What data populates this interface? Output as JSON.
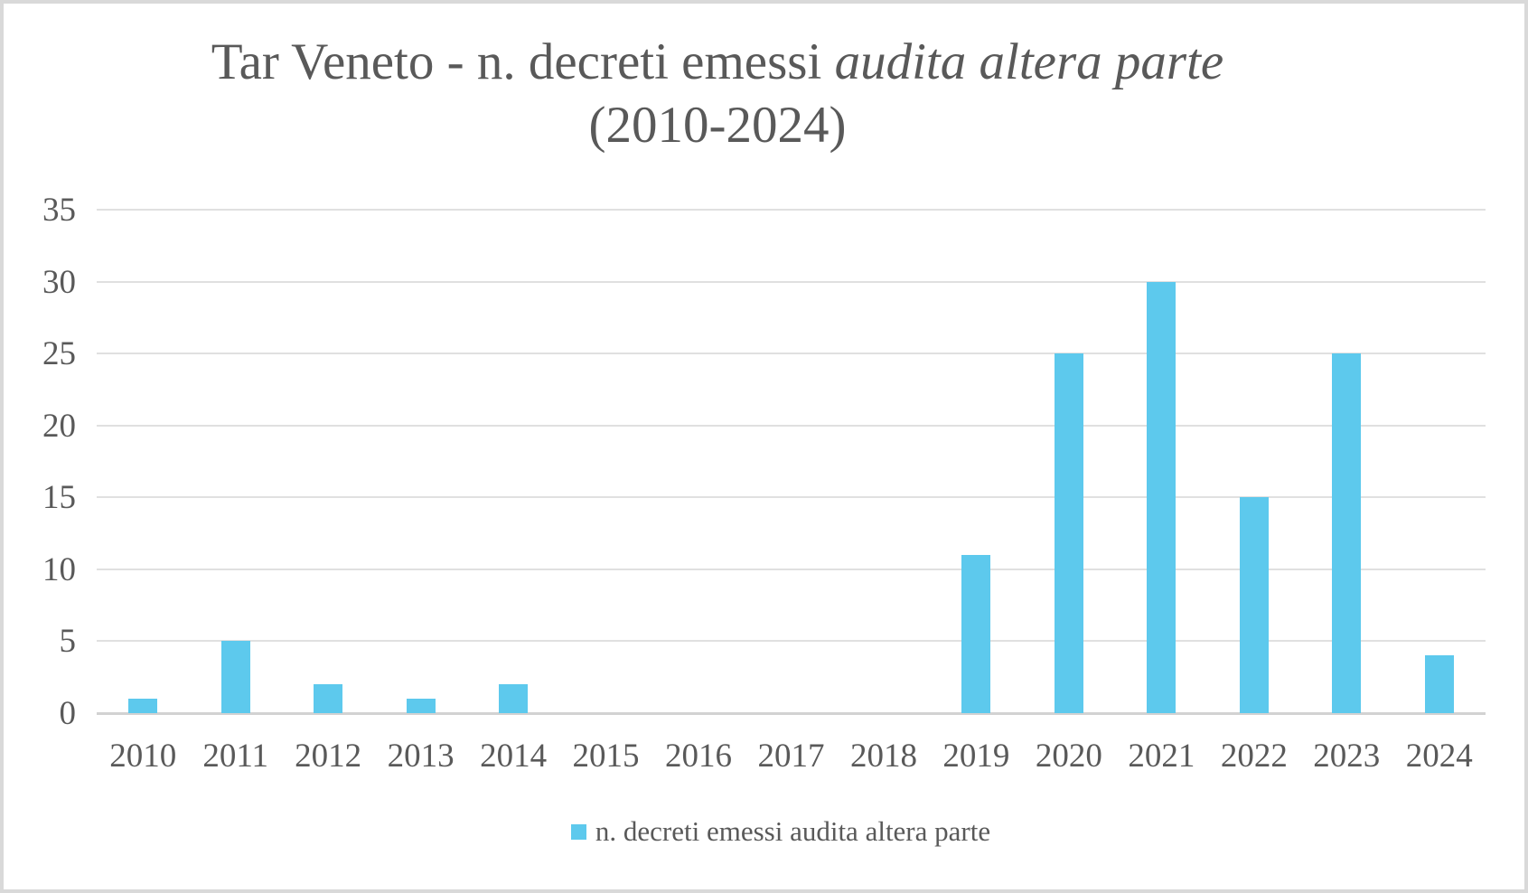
{
  "chart_data": {
    "type": "bar",
    "title": "Tar Veneto - n. decreti emessi audita altera parte (2010-2024)",
    "title_main": "Tar Veneto - n. decreti emessi ",
    "title_italic": "audita altera parte",
    "title_line2": "(2010-2024)",
    "categories": [
      "2010",
      "2011",
      "2012",
      "2013",
      "2014",
      "2015",
      "2016",
      "2017",
      "2018",
      "2019",
      "2020",
      "2021",
      "2022",
      "2023",
      "2024"
    ],
    "series": [
      {
        "name": "n. decreti emessi audita altera parte",
        "values": [
          1,
          5,
          2,
          1,
          2,
          0,
          0,
          0,
          0,
          11,
          25,
          30,
          15,
          25,
          4
        ]
      }
    ],
    "xlabel": "",
    "ylabel": "",
    "ylim": [
      0,
      35
    ],
    "yticks": [
      0,
      5,
      10,
      15,
      20,
      25,
      30,
      35
    ],
    "grid": true,
    "legend_position": "bottom",
    "colors": {
      "bar": "#5DC9ED",
      "text": "#595959",
      "gridline": "#e0e0e0",
      "axis_line": "#d2d2d2",
      "frame_border": "#d9d9d9",
      "background": "#ffffff"
    }
  },
  "legend": {
    "label": "n. decreti emessi audita altera parte"
  }
}
